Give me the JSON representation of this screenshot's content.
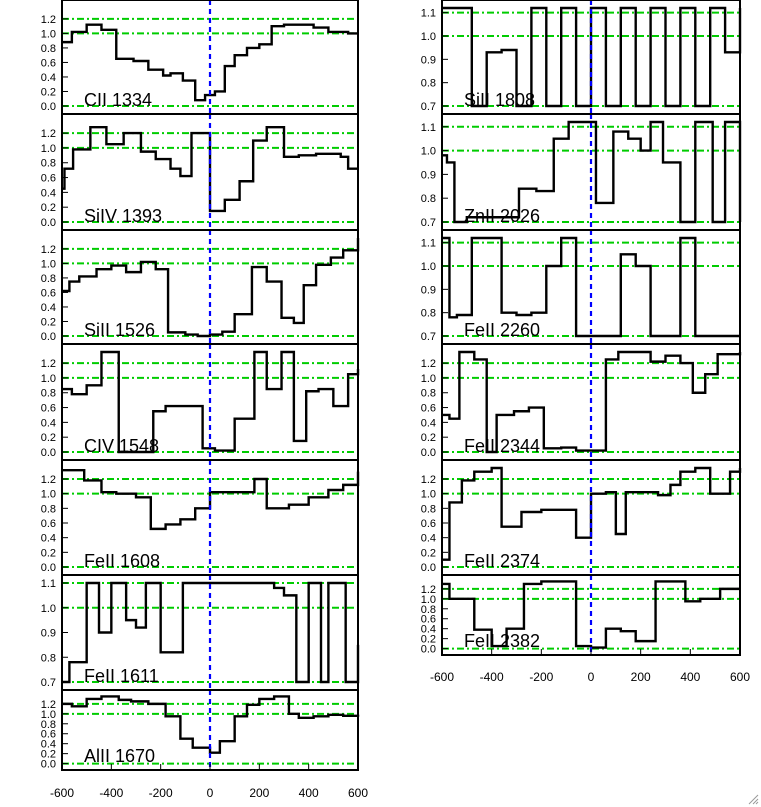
{
  "chart_data": {
    "type": "line",
    "line_style": "steps",
    "title": "",
    "xlabel": "",
    "xlim": [
      -600,
      600
    ],
    "x_ticks": [
      "-600",
      "-400",
      "-200",
      "0",
      "200",
      "400",
      "600"
    ],
    "reference_lines": {
      "velocity_zero": {
        "x": 0,
        "color": "#0000ff",
        "style": "dashed"
      },
      "continuum": {
        "color": "#00cc00",
        "style": "dash-dot",
        "note_levels": "drawn at every y tick except extremes"
      }
    },
    "series_color": "#000000",
    "columns": [
      {
        "panels": [
          {
            "label": "CII 1334",
            "ylim": [
              0,
              1.35
            ],
            "yticks": [
              "0.0",
              "0.2",
              "0.4",
              "0.6",
              "0.8",
              "1.0",
              "1.2"
            ],
            "x": [
              -600,
              -560,
              -500,
              -440,
              -380,
              -310,
              -250,
              -190,
              -160,
              -110,
              -60,
              -20,
              20,
              60,
              100,
              150,
              200,
              250,
              300,
              350,
              420,
              480,
              560,
              600
            ],
            "y": [
              0.88,
              1.02,
              1.12,
              1.05,
              0.65,
              0.62,
              0.5,
              0.42,
              0.45,
              0.35,
              0.08,
              0.15,
              0.2,
              0.55,
              0.7,
              0.8,
              0.85,
              1.1,
              1.12,
              1.12,
              1.08,
              1.02,
              1.0,
              1.0
            ]
          },
          {
            "label": "SiIV 1393",
            "ylim": [
              0,
              1.35
            ],
            "yticks": [
              "0.0",
              "0.2",
              "0.4",
              "0.6",
              "0.8",
              "1.0",
              "1.2"
            ],
            "x": [
              -600,
              -590,
              -555,
              -485,
              -420,
              -350,
              -280,
              -220,
              -160,
              -120,
              -75,
              0,
              60,
              120,
              175,
              230,
              300,
              360,
              430,
              500,
              530,
              560,
              600
            ],
            "y": [
              0.45,
              0.72,
              0.98,
              1.28,
              1.05,
              1.2,
              0.95,
              0.85,
              0.72,
              0.62,
              1.2,
              0.15,
              0.3,
              0.55,
              1.1,
              1.28,
              0.88,
              0.9,
              0.92,
              0.92,
              0.88,
              0.72,
              0.72
            ]
          },
          {
            "label": "SiII 1526",
            "ylim": [
              0,
              1.35
            ],
            "yticks": [
              "0.0",
              "0.2",
              "0.4",
              "0.6",
              "0.8",
              "1.0",
              "1.2"
            ],
            "x": [
              -600,
              -570,
              -530,
              -460,
              -400,
              -340,
              -280,
              -220,
              -170,
              -100,
              -50,
              0,
              50,
              100,
              170,
              230,
              290,
              340,
              380,
              430,
              490,
              540,
              600
            ],
            "y": [
              0.62,
              0.75,
              0.82,
              0.92,
              0.97,
              0.88,
              1.02,
              0.92,
              0.05,
              0.02,
              -0.02,
              0.02,
              0.06,
              0.3,
              0.95,
              0.75,
              0.25,
              0.18,
              0.7,
              0.98,
              1.08,
              1.18,
              1.35
            ]
          },
          {
            "label": "CIV 1548",
            "ylim": [
              0,
              1.35
            ],
            "yticks": [
              "0.0",
              "0.2",
              "0.4",
              "0.6",
              "0.8",
              "1.0",
              "1.2"
            ],
            "x": [
              -600,
              -560,
              -500,
              -440,
              -370,
              -280,
              -230,
              -180,
              -30,
              20,
              100,
              180,
              230,
              290,
              340,
              390,
              440,
              500,
              560,
              600
            ],
            "y": [
              0.85,
              0.78,
              0.9,
              1.35,
              0.0,
              0.0,
              0.55,
              0.62,
              0.05,
              0.02,
              0.45,
              1.35,
              0.85,
              1.35,
              0.15,
              0.82,
              0.85,
              0.62,
              1.05,
              1.12
            ]
          },
          {
            "label": "FeII 1608",
            "ylim": [
              0,
              1.35
            ],
            "yticks": [
              "0.0",
              "0.2",
              "0.4",
              "0.6",
              "0.8",
              "1.0",
              "1.2"
            ],
            "x": [
              -600,
              -510,
              -440,
              -380,
              -300,
              -240,
              -180,
              -120,
              -60,
              0,
              60,
              110,
              180,
              230,
              320,
              400,
              480,
              540,
              600
            ],
            "y": [
              1.32,
              1.18,
              1.02,
              1.0,
              0.95,
              0.52,
              0.58,
              0.65,
              0.8,
              1.02,
              1.02,
              1.02,
              1.2,
              0.8,
              0.85,
              0.95,
              1.05,
              1.12,
              1.3
            ]
          },
          {
            "label": "FeII 1611",
            "ylim": [
              0.7,
              1.1
            ],
            "yticks": [
              "0.7",
              "0.8",
              "0.9",
              "1.0",
              "1.1"
            ],
            "x": [
              -600,
              -570,
              -500,
              -450,
              -400,
              -340,
              -300,
              -260,
              -200,
              -110,
              -60,
              20,
              150,
              200,
              260,
              300,
              350,
              400,
              450,
              480,
              550,
              600
            ],
            "y": [
              0.7,
              0.78,
              1.1,
              0.9,
              1.1,
              0.95,
              0.92,
              1.1,
              0.82,
              1.1,
              1.1,
              1.1,
              1.1,
              1.1,
              1.08,
              1.05,
              0.7,
              1.1,
              0.7,
              1.1,
              0.7,
              0.85
            ]
          },
          {
            "label": "AlII 1670",
            "ylim": [
              0,
              1.35
            ],
            "yticks": [
              "0.0",
              "0.2",
              "0.4",
              "0.6",
              "0.8",
              "1.0",
              "1.2"
            ],
            "x": [
              -600,
              -560,
              -500,
              -440,
              -370,
              -320,
              -250,
              -180,
              -120,
              -70,
              0,
              40,
              100,
              150,
              200,
              260,
              320,
              360,
              420,
              480,
              540,
              600
            ],
            "y": [
              1.2,
              1.15,
              1.3,
              1.35,
              1.28,
              1.25,
              1.2,
              0.95,
              0.5,
              0.32,
              0.22,
              0.45,
              0.95,
              1.18,
              1.3,
              1.35,
              1.0,
              0.92,
              0.95,
              0.98,
              0.96,
              0.94
            ]
          }
        ]
      },
      {
        "panels": [
          {
            "label": "SiII 1808",
            "ylim": [
              0.7,
              1.12
            ],
            "yticks": [
              "0.7",
              "0.8",
              "0.9",
              "1.0",
              "1.1"
            ],
            "x": [
              -600,
              -570,
              -540,
              -480,
              -420,
              -360,
              -300,
              -240,
              -180,
              -120,
              -60,
              0,
              60,
              120,
              180,
              240,
              300,
              360,
              420,
              480,
              540,
              600
            ],
            "y": [
              1.12,
              1.12,
              1.12,
              0.7,
              0.93,
              0.94,
              0.7,
              1.12,
              0.7,
              1.12,
              0.7,
              1.12,
              0.7,
              1.12,
              0.7,
              1.12,
              0.7,
              1.12,
              0.7,
              1.12,
              0.93,
              1.12
            ]
          },
          {
            "label": "ZnII 2026",
            "ylim": [
              0.7,
              1.12
            ],
            "yticks": [
              "0.7",
              "0.8",
              "0.9",
              "1.0",
              "1.1"
            ],
            "x": [
              -600,
              -580,
              -550,
              -500,
              -430,
              -360,
              -290,
              -220,
              -150,
              -90,
              20,
              90,
              150,
              200,
              240,
              290,
              360,
              420,
              490,
              540,
              600
            ],
            "y": [
              0.98,
              0.95,
              0.7,
              0.72,
              0.72,
              0.72,
              0.84,
              0.83,
              1.05,
              1.12,
              0.78,
              1.08,
              1.05,
              1.0,
              1.12,
              0.95,
              0.7,
              1.12,
              0.7,
              1.12,
              0.7
            ]
          },
          {
            "label": "FeII 2260",
            "ylim": [
              0.7,
              1.12
            ],
            "yticks": [
              "0.7",
              "0.8",
              "0.9",
              "1.0",
              "1.1"
            ],
            "x": [
              -600,
              -570,
              -540,
              -480,
              -420,
              -360,
              -300,
              -240,
              -180,
              -120,
              -60,
              0,
              60,
              120,
              180,
              240,
              300,
              360,
              420,
              480,
              540,
              600
            ],
            "y": [
              1.12,
              0.78,
              0.79,
              1.12,
              1.12,
              0.8,
              0.79,
              0.8,
              1.0,
              1.12,
              0.7,
              0.7,
              0.7,
              1.05,
              1.0,
              0.7,
              0.7,
              1.12,
              0.7,
              0.7,
              0.7,
              0.7
            ]
          },
          {
            "label": "FeII 2344",
            "ylim": [
              0,
              1.35
            ],
            "yticks": [
              "0.0",
              "0.2",
              "0.4",
              "0.6",
              "0.8",
              "1.0",
              "1.2"
            ],
            "x": [
              -600,
              -570,
              -530,
              -470,
              -420,
              -380,
              -310,
              -250,
              -190,
              -120,
              -60,
              0,
              60,
              110,
              190,
              240,
              300,
              360,
              410,
              460,
              510,
              600
            ],
            "y": [
              0.5,
              0.45,
              1.35,
              1.25,
              0.0,
              0.5,
              0.55,
              0.6,
              0.05,
              0.06,
              0.02,
              0.02,
              1.25,
              1.35,
              1.35,
              1.22,
              1.3,
              1.2,
              0.8,
              1.05,
              1.32,
              1.35
            ]
          },
          {
            "label": "FeII 2374",
            "ylim": [
              0,
              1.35
            ],
            "yticks": [
              "0.0",
              "0.2",
              "0.4",
              "0.6",
              "0.8",
              "1.0",
              "1.2"
            ],
            "x": [
              -600,
              -570,
              -520,
              -470,
              -400,
              -360,
              -280,
              -200,
              -120,
              -60,
              0,
              60,
              100,
              140,
              200,
              270,
              320,
              360,
              420,
              480,
              560,
              600
            ],
            "y": [
              0.1,
              0.88,
              1.18,
              1.3,
              1.35,
              0.55,
              0.75,
              0.78,
              0.78,
              0.4,
              1.0,
              1.02,
              0.45,
              1.02,
              1.02,
              0.98,
              1.12,
              1.3,
              1.35,
              1.0,
              1.3,
              1.35
            ]
          },
          {
            "label": "FeII 2382",
            "ylim": [
              0,
              1.35
            ],
            "yticks": [
              "0.0",
              "0.2",
              "0.4",
              "0.6",
              "0.8",
              "1.0",
              "1.2"
            ],
            "x": [
              -600,
              -570,
              -520,
              -470,
              -400,
              -340,
              -270,
              -200,
              -120,
              -60,
              0,
              60,
              120,
              180,
              260,
              320,
              380,
              440,
              520,
              600
            ],
            "y": [
              1.3,
              1.0,
              1.0,
              0.38,
              0.05,
              0.4,
              1.3,
              1.35,
              1.35,
              0.05,
              0.02,
              0.4,
              0.35,
              0.15,
              1.35,
              1.35,
              0.95,
              1.0,
              1.2,
              1.2
            ]
          }
        ]
      }
    ]
  }
}
